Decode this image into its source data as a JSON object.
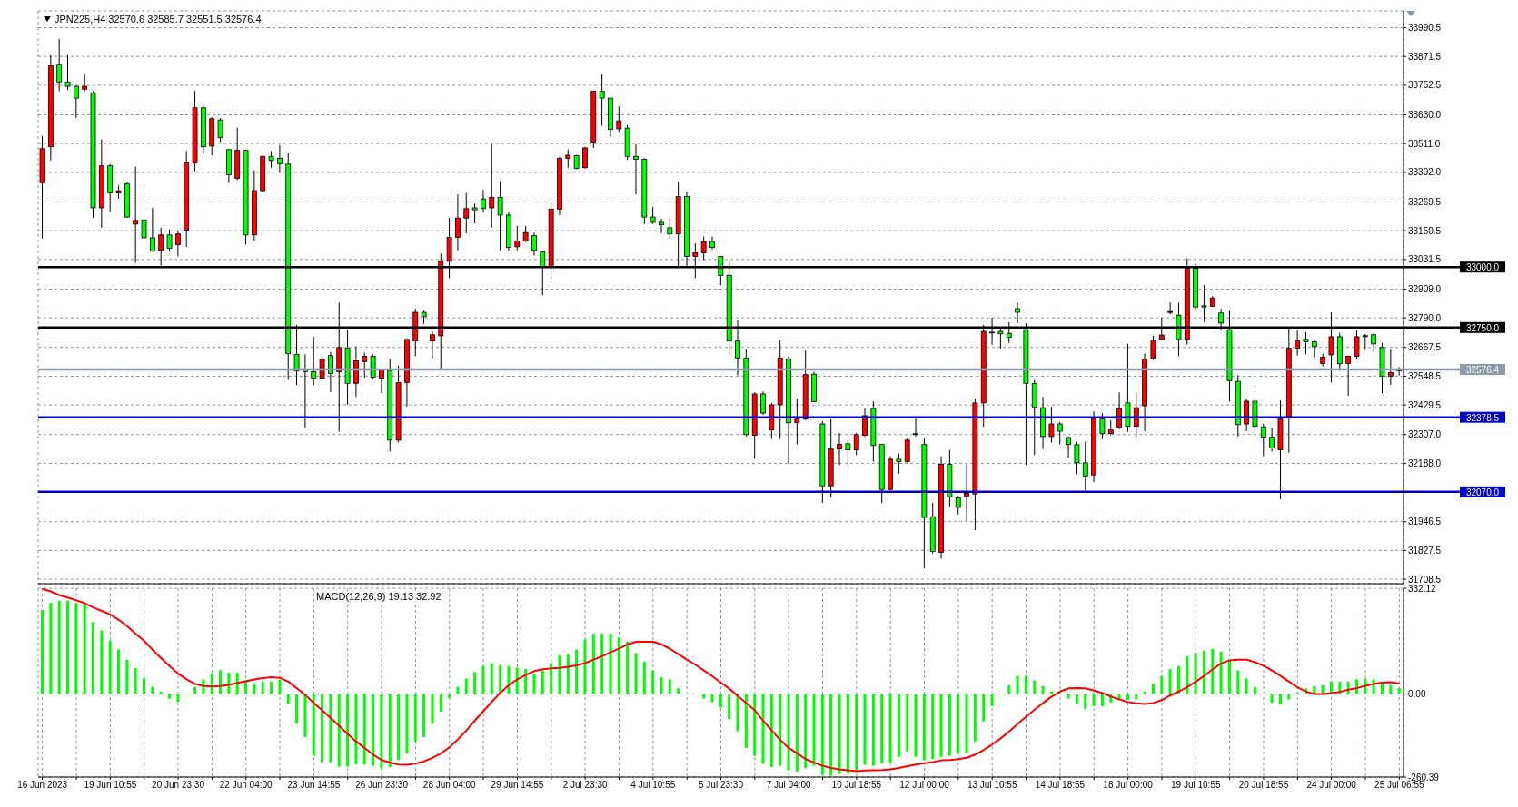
{
  "chart_data": [
    {
      "type": "candlestick",
      "title": "JPN225,H4  32570.6 32585.7 32551.5 32576.4",
      "categories": [
        null,
        null,
        null,
        null,
        null,
        null,
        null,
        null,
        null,
        null,
        null,
        null,
        null,
        null,
        null,
        null,
        null,
        null,
        null,
        null,
        null,
        null,
        null,
        null,
        null,
        null,
        null,
        null,
        null,
        null,
        null,
        null,
        null,
        null,
        null,
        null,
        null,
        null,
        null,
        null,
        null,
        null,
        null,
        null,
        null,
        null,
        null,
        null,
        null,
        null,
        null,
        null,
        null,
        null,
        null,
        null,
        null,
        null,
        null,
        null,
        null,
        null,
        null,
        null,
        null,
        null,
        null,
        null,
        null,
        null,
        null,
        null,
        null,
        null,
        null,
        null,
        null,
        null,
        null,
        null,
        null,
        null,
        null,
        null,
        null,
        null,
        null,
        null,
        null,
        null,
        null,
        null,
        null,
        null,
        null,
        null,
        null,
        null,
        null,
        null,
        null,
        null,
        null,
        null,
        null,
        null,
        null,
        null,
        null,
        null,
        null,
        null,
        null,
        null,
        null,
        null,
        null,
        null,
        null,
        null,
        null,
        null,
        null,
        null,
        null,
        null,
        null,
        null,
        null,
        null,
        null,
        null,
        null,
        null,
        null,
        null,
        null,
        null,
        null,
        null,
        null,
        null,
        null,
        null,
        null,
        null,
        null,
        null,
        null,
        null,
        null,
        null,
        null,
        null,
        null,
        null,
        null,
        null,
        null,
        null,
        null
      ],
      "ohlc": [
        [
          33349,
          33542,
          33118,
          33490
        ],
        [
          33498,
          33877,
          33441,
          33833
        ],
        [
          33836,
          33944,
          33728,
          33766
        ],
        [
          33766,
          33877,
          33733,
          33748
        ],
        [
          33748,
          33751,
          33617,
          33699
        ],
        [
          33736,
          33799,
          33728,
          33748
        ],
        [
          33721,
          33728,
          33203,
          33245
        ],
        [
          33245,
          33528,
          33163,
          33419
        ],
        [
          33419,
          33426,
          33230,
          33307
        ],
        [
          33307,
          33337,
          33282,
          33316
        ],
        [
          33344,
          33352,
          33203,
          33207
        ],
        [
          33178,
          33416,
          33018,
          33193
        ],
        [
          33195,
          33341,
          33039,
          33121
        ],
        [
          33121,
          33245,
          33063,
          33066
        ],
        [
          33069,
          33163,
          33006,
          33133
        ],
        [
          33133,
          33155,
          33066,
          33078
        ],
        [
          33093,
          33152,
          33044,
          33137
        ],
        [
          33152,
          33480,
          33084,
          33431
        ],
        [
          33431,
          33728,
          33396,
          33659
        ],
        [
          33659,
          33669,
          33474,
          33498
        ],
        [
          33501,
          33620,
          33463,
          33614
        ],
        [
          33609,
          33617,
          33517,
          33535
        ],
        [
          33486,
          33486,
          33349,
          33382
        ],
        [
          33367,
          33577,
          33359,
          33483
        ],
        [
          33483,
          33486,
          33093,
          33133
        ],
        [
          33133,
          33401,
          33108,
          33316
        ],
        [
          33316,
          33465,
          33309,
          33458
        ],
        [
          33458,
          33480,
          33411,
          33441
        ],
        [
          33450,
          33505,
          33391,
          33428
        ],
        [
          33426,
          33475,
          32533,
          32642
        ],
        [
          32639,
          32761,
          32511,
          32570
        ],
        [
          32575,
          32639,
          32336,
          32567
        ],
        [
          32567,
          32712,
          32511,
          32540
        ],
        [
          32540,
          32631,
          32530,
          32619
        ],
        [
          32634,
          32649,
          32482,
          32560
        ],
        [
          32567,
          32853,
          32318,
          32667
        ],
        [
          32664,
          32741,
          32430,
          32519
        ],
        [
          32519,
          32671,
          32463,
          32612
        ],
        [
          32609,
          32646,
          32542,
          32631
        ],
        [
          32631,
          32639,
          32537,
          32545
        ],
        [
          32540,
          32578,
          32478,
          32575
        ],
        [
          32572,
          32619,
          32237,
          32284
        ],
        [
          32284,
          32592,
          32274,
          32522
        ],
        [
          32522,
          32701,
          32423,
          32701
        ],
        [
          32694,
          32828,
          32631,
          32813
        ],
        [
          32813,
          32820,
          32765,
          32795
        ],
        [
          32694,
          32735,
          32622,
          32720
        ],
        [
          32716,
          33056,
          32572,
          33024
        ],
        [
          33024,
          33203,
          32954,
          33123
        ],
        [
          33123,
          33301,
          33069,
          33203
        ],
        [
          33203,
          33307,
          33140,
          33242
        ],
        [
          33245,
          33263,
          33181,
          33237
        ],
        [
          33282,
          33319,
          33227,
          33242
        ],
        [
          33245,
          33508,
          33163,
          33289
        ],
        [
          33289,
          33356,
          33069,
          33215
        ],
        [
          33215,
          33230,
          33069,
          33081
        ],
        [
          33084,
          33170,
          33069,
          33108
        ],
        [
          33108,
          33170,
          33103,
          33143
        ],
        [
          33130,
          33143,
          33048,
          33069
        ],
        [
          33063,
          33063,
          32884,
          33003
        ],
        [
          33003,
          33267,
          32950,
          33240
        ],
        [
          33240,
          33456,
          33215,
          33449
        ],
        [
          33449,
          33486,
          33411,
          33463
        ],
        [
          33461,
          33465,
          33405,
          33408
        ],
        [
          33411,
          33498,
          33408,
          33493
        ],
        [
          33517,
          33728,
          33493,
          33728
        ],
        [
          33728,
          33799,
          33584,
          33699
        ],
        [
          33699,
          33699,
          33539,
          33569
        ],
        [
          33572,
          33665,
          33560,
          33605
        ],
        [
          33575,
          33587,
          33443,
          33458
        ],
        [
          33458,
          33508,
          33301,
          33446
        ],
        [
          33446,
          33450,
          33178,
          33207
        ],
        [
          33207,
          33248,
          33178,
          33185
        ],
        [
          33185,
          33200,
          33140,
          33175
        ],
        [
          33163,
          33200,
          33118,
          33137
        ],
        [
          33137,
          33353,
          33003,
          33292
        ],
        [
          33292,
          33312,
          33003,
          33044
        ],
        [
          33044,
          33099,
          32954,
          33059
        ],
        [
          33059,
          33126,
          33029,
          33106
        ],
        [
          33106,
          33126,
          33073,
          33081
        ],
        [
          33044,
          33044,
          32925,
          32966
        ],
        [
          32966,
          33029,
          32639,
          32694
        ],
        [
          32694,
          32780,
          32552,
          32624
        ],
        [
          32624,
          32661,
          32299,
          32307
        ],
        [
          32304,
          32482,
          32207,
          32475
        ],
        [
          32475,
          32485,
          32388,
          32396
        ],
        [
          32326,
          32438,
          32289,
          32430
        ],
        [
          32430,
          32698,
          32289,
          32624
        ],
        [
          32619,
          32631,
          32187,
          32356
        ],
        [
          32356,
          32455,
          32266,
          32371
        ],
        [
          32371,
          32654,
          32366,
          32555
        ],
        [
          32557,
          32567,
          32441,
          32444
        ],
        [
          32351,
          32363,
          32024,
          32095
        ],
        [
          32095,
          32371,
          32046,
          32247
        ],
        [
          32247,
          32314,
          32180,
          32266
        ],
        [
          32269,
          32284,
          32180,
          32244
        ],
        [
          32244,
          32314,
          32222,
          32307
        ],
        [
          32304,
          32415,
          32299,
          32385
        ],
        [
          32415,
          32445,
          32195,
          32262
        ],
        [
          32266,
          32269,
          32024,
          32080
        ],
        [
          32080,
          32217,
          32076,
          32205
        ],
        [
          32205,
          32229,
          32146,
          32195
        ],
        [
          32195,
          32292,
          32190,
          32284
        ],
        [
          32311,
          32374,
          32299,
          32307
        ],
        [
          32266,
          32292,
          31753,
          31964
        ],
        [
          31967,
          32024,
          31815,
          31823
        ],
        [
          31820,
          32217,
          31793,
          32184
        ],
        [
          32184,
          32244,
          32009,
          32050
        ],
        [
          32046,
          32053,
          31976,
          32006
        ],
        [
          32053,
          32184,
          31949,
          32064
        ],
        [
          32061,
          32455,
          31912,
          32438
        ],
        [
          32438,
          32761,
          32339,
          32734
        ],
        [
          32731,
          32790,
          32679,
          32729
        ],
        [
          32734,
          32753,
          32664,
          32724
        ],
        [
          32726,
          32771,
          32686,
          32709
        ],
        [
          32828,
          32854,
          32768,
          32813
        ],
        [
          32741,
          32768,
          32180,
          32519
        ],
        [
          32519,
          32533,
          32222,
          32421
        ],
        [
          32418,
          32463,
          32247,
          32299
        ],
        [
          32299,
          32421,
          32274,
          32351
        ],
        [
          32351,
          32359,
          32266,
          32321
        ],
        [
          32295,
          32299,
          32210,
          32266
        ],
        [
          32265,
          32277,
          32143,
          32190
        ],
        [
          32190,
          32277,
          32076,
          32135
        ],
        [
          32140,
          32403,
          32110,
          32374
        ],
        [
          32371,
          32396,
          32289,
          32311
        ],
        [
          32311,
          32366,
          32304,
          32326
        ],
        [
          32336,
          32481,
          32329,
          32414
        ],
        [
          32438,
          32683,
          32318,
          32341
        ],
        [
          32341,
          32481,
          32299,
          32418
        ],
        [
          32426,
          32642,
          32321,
          32619
        ],
        [
          32622,
          32716,
          32616,
          32694
        ],
        [
          32701,
          32790,
          32697,
          32719
        ],
        [
          32813,
          32854,
          32805,
          32816
        ],
        [
          32801,
          32853,
          32631,
          32701
        ],
        [
          32701,
          33036,
          32679,
          32995
        ],
        [
          32995,
          33014,
          32820,
          32835
        ],
        [
          32840,
          32925,
          32773,
          32835
        ],
        [
          32838,
          32880,
          32835,
          32872
        ],
        [
          32810,
          32828,
          32738,
          32768
        ],
        [
          32741,
          32820,
          32444,
          32530
        ],
        [
          32527,
          32552,
          32299,
          32348
        ],
        [
          32351,
          32455,
          32321,
          32445
        ],
        [
          32445,
          32485,
          32321,
          32341
        ],
        [
          32339,
          32351,
          32217,
          32296
        ],
        [
          32296,
          32333,
          32237,
          32251
        ],
        [
          32244,
          32448,
          32039,
          32371
        ],
        [
          32381,
          32746,
          32232,
          32664
        ],
        [
          32664,
          32741,
          32634,
          32697
        ],
        [
          32701,
          32731,
          32639,
          32691
        ],
        [
          32691,
          32697,
          32627,
          32671
        ],
        [
          32601,
          32642,
          32589,
          32627
        ],
        [
          32637,
          32813,
          32522,
          32712
        ],
        [
          32712,
          32728,
          32572,
          32600
        ],
        [
          32601,
          32634,
          32467,
          32631
        ],
        [
          32631,
          32738,
          32619,
          32712
        ],
        [
          32716,
          32724,
          32657,
          32713
        ],
        [
          32720,
          32726,
          32649,
          32682
        ],
        [
          32667,
          32686,
          32478,
          32549
        ],
        [
          32549,
          32661,
          32512,
          32563
        ],
        [
          32570.6,
          32585.7,
          32551.5,
          32576.4
        ]
      ],
      "colors": [
        "#ff0000",
        "#ff0000",
        "#00ff00",
        "#00ff00",
        "#00ff00",
        "#ff0000",
        "#00ff00",
        "#ff0000",
        "#00ff00",
        "#ff0000",
        "#00ff00",
        "#ff0000",
        "#00ff00",
        "#00ff00",
        "#ff0000",
        "#00ff00",
        "#ff0000",
        "#ff0000",
        "#ff0000",
        "#00ff00",
        "#ff0000",
        "#00ff00",
        "#00ff00",
        "#ff0000",
        "#00ff00",
        "#ff0000",
        "#ff0000",
        "#00ff00",
        "#00ff00",
        "#00ff00",
        "#00ff00",
        "#00ff00",
        "#00ff00",
        "#ff0000",
        "#00ff00",
        "#ff0000",
        "#00ff00",
        "#ff0000",
        "#ff0000",
        "#00ff00",
        "#ff0000",
        "#00ff00",
        "#ff0000",
        "#ff0000",
        "#ff0000",
        "#00ff00",
        "#ff0000",
        "#ff0000",
        "#ff0000",
        "#ff0000",
        "#ff0000",
        "#00ff00",
        "#00ff00",
        "#ff0000",
        "#00ff00",
        "#00ff00",
        "#ff0000",
        "#ff0000",
        "#00ff00",
        "#00ff00",
        "#ff0000",
        "#ff0000",
        "#ff0000",
        "#00ff00",
        "#ff0000",
        "#ff0000",
        "#00ff00",
        "#00ff00",
        "#ff0000",
        "#00ff00",
        "#00ff00",
        "#00ff00",
        "#00ff00",
        "#00ff00",
        "#00ff00",
        "#ff0000",
        "#00ff00",
        "#ff0000",
        "#ff0000",
        "#00ff00",
        "#00ff00",
        "#00ff00",
        "#00ff00",
        "#00ff00",
        "#ff0000",
        "#00ff00",
        "#ff0000",
        "#ff0000",
        "#00ff00",
        "#ff0000",
        "#ff0000",
        "#00ff00",
        "#00ff00",
        "#ff0000",
        "#ff0000",
        "#00ff00",
        "#ff0000",
        "#ff0000",
        "#00ff00",
        "#00ff00",
        "#ff0000",
        "#00ff00",
        "#ff0000",
        "#00ff00",
        "#00ff00",
        "#00ff00",
        "#ff0000",
        "#00ff00",
        "#00ff00",
        "#ff0000",
        "#ff0000",
        "#ff0000",
        "#00ff00",
        "#00ff00",
        "#00ff00",
        "#00ff00",
        "#00ff00",
        "#00ff00",
        "#00ff00",
        "#ff0000",
        "#00ff00",
        "#00ff00",
        "#00ff00",
        "#00ff00",
        "#ff0000",
        "#00ff00",
        "#ff0000",
        "#ff0000",
        "#00ff00",
        "#ff0000",
        "#ff0000",
        "#ff0000",
        "#ff0000",
        "#ff0000",
        "#00ff00",
        "#ff0000",
        "#00ff00",
        "#00ff00",
        "#ff0000",
        "#00ff00",
        "#00ff00",
        "#00ff00",
        "#ff0000",
        "#00ff00",
        "#00ff00",
        "#00ff00",
        "#ff0000",
        "#ff0000",
        "#ff0000",
        "#00ff00",
        "#00ff00",
        "#ff0000",
        "#ff0000",
        "#00ff00",
        "#ff0000",
        "#ff0000",
        "#00ff00",
        "#00ff00",
        "#00ff00",
        "#ff0000",
        "#ff0000"
      ],
      "ylim": [
        31690,
        34060
      ],
      "yticks": [
        33990.5,
        33871.5,
        33752.5,
        {
          "value": 33630,
          "label": "33630.0"
        },
        {
          "value": 33511,
          "label": "33511.0"
        },
        {
          "value": 33392,
          "label": "33392.0"
        },
        33269.5,
        33150.5,
        33031.5,
        {
          "value": 32909,
          "label": "32909.0"
        },
        {
          "value": 32790,
          "label": "32790.0"
        },
        32667.5,
        32548.5,
        32429.5,
        {
          "value": 32307,
          "label": "32307.0"
        },
        {
          "value": 32188,
          "label": "32188.0"
        },
        {
          "value": 32068.5,
          "label": null
        },
        31946.5,
        31827.5,
        31708.5
      ],
      "grid": true,
      "tick_labels": "y",
      "ref_lines": [
        {
          "axis": "y",
          "value": 33000,
          "label": "33000.0",
          "color": "#000000"
        },
        {
          "axis": "y",
          "value": 32750,
          "label": "32750.0",
          "color": "#000000"
        },
        {
          "axis": "y",
          "value": 32576.4,
          "label": "32576.4",
          "color": "#8c9aab"
        },
        {
          "axis": "y",
          "value": 32378.5,
          "label": "32378.5",
          "color": "#0000c8"
        },
        {
          "axis": "y",
          "value": 32070,
          "label": "32070.0",
          "color": "#0000c8"
        }
      ]
    },
    {
      "type": "bar",
      "title": "MACD(12,26,9) 19.13 32.92",
      "categories": [
        "16 Jun 2023",
        null,
        null,
        null,
        null,
        null,
        null,
        null,
        "19 Jun 10:55",
        null,
        null,
        null,
        null,
        null,
        null,
        null,
        "20 Jun 23:30",
        null,
        null,
        null,
        null,
        null,
        null,
        null,
        "22 Jun 04:00",
        null,
        null,
        null,
        null,
        null,
        null,
        null,
        "23 Jun 14:55",
        null,
        null,
        null,
        null,
        null,
        null,
        null,
        "26 Jun 23:30",
        null,
        null,
        null,
        null,
        null,
        null,
        null,
        "28 Jun 04:00",
        null,
        null,
        null,
        null,
        null,
        null,
        null,
        "29 Jun 14:55",
        null,
        null,
        null,
        null,
        null,
        null,
        null,
        "2 Jul 23:30",
        null,
        null,
        null,
        null,
        null,
        null,
        null,
        "4 Jul 10:55",
        null,
        null,
        null,
        null,
        null,
        null,
        null,
        "5 Jul 23:30",
        null,
        null,
        null,
        null,
        null,
        null,
        null,
        "7 Jul 04:00",
        null,
        null,
        null,
        null,
        null,
        null,
        null,
        "10 Jul 18:55",
        null,
        null,
        null,
        null,
        null,
        null,
        null,
        "12 Jul 00:00",
        null,
        null,
        null,
        null,
        null,
        null,
        null,
        "13 Jul 10:55",
        null,
        null,
        null,
        null,
        null,
        null,
        null,
        "14 Jul 18:55",
        null,
        null,
        null,
        null,
        null,
        null,
        null,
        "18 Jul 00:00",
        null,
        null,
        null,
        null,
        null,
        null,
        null,
        "19 Jul 10:55",
        null,
        null,
        null,
        null,
        null,
        null,
        null,
        "20 Jul 18:55",
        null,
        null,
        null,
        null,
        null,
        null,
        null,
        "24 Jul 00:00",
        null,
        null,
        null,
        null,
        null,
        null,
        null,
        "25 Jul 06:55"
      ],
      "series": [
        {
          "type": "bar",
          "color": "#00ff00",
          "values": [
            264,
            286,
            293,
            293,
            286,
            282,
            226,
            199,
            168,
            140,
            108,
            81,
            50,
            22,
            7,
            -14,
            -25,
            0,
            22,
            46,
            64,
            75,
            67,
            67,
            43,
            32,
            39,
            39,
            46,
            -31,
            -93,
            -135,
            -194,
            -214,
            -214,
            -228,
            -228,
            -221,
            -221,
            -225,
            -233,
            -229,
            -207,
            -186,
            -149,
            -135,
            -93,
            -56,
            -13,
            22,
            49,
            69,
            88,
            97,
            90,
            88,
            83,
            78,
            63,
            74,
            97,
            121,
            126,
            139,
            171,
            189,
            190,
            190,
            178,
            164,
            129,
            101,
            74,
            53,
            46,
            18,
            0,
            0,
            -14,
            -25,
            -42,
            -79,
            -117,
            -169,
            -194,
            -218,
            -229,
            -225,
            -239,
            -243,
            -232,
            -225,
            -253,
            -256,
            -250,
            -250,
            -239,
            -222,
            -225,
            -218,
            -214,
            -197,
            -181,
            -197,
            -208,
            -204,
            -197,
            -194,
            -186,
            -186,
            -149,
            -86,
            -38,
            0,
            28,
            57,
            57,
            43,
            25,
            8,
            3,
            -14,
            -31,
            -47,
            -38,
            -38,
            -26,
            -17,
            -19,
            -17,
            8,
            32,
            56,
            78,
            88,
            119,
            129,
            136,
            142,
            133,
            108,
            74,
            49,
            22,
            0,
            -28,
            -33,
            -17,
            4,
            18,
            25,
            28,
            39,
            39,
            39,
            46,
            49,
            46,
            32,
            28,
            19.13
          ]
        },
        {
          "type": "line",
          "color": "#ff0000",
          "values": [
            330,
            322,
            310,
            303,
            294,
            285,
            272,
            261,
            250,
            233,
            213,
            189,
            167,
            139,
            113,
            88,
            64,
            46,
            32,
            25,
            24,
            25,
            29,
            35,
            40,
            46,
            50,
            53,
            51,
            39,
            18,
            -3,
            -28,
            -51,
            -75,
            -100,
            -125,
            -149,
            -169,
            -190,
            -207,
            -215,
            -221,
            -222,
            -218,
            -211,
            -200,
            -186,
            -167,
            -142,
            -114,
            -83,
            -54,
            -24,
            4,
            28,
            46,
            60,
            72,
            78,
            81,
            82,
            86,
            90,
            97,
            108,
            119,
            131,
            143,
            156,
            164,
            164,
            164,
            156,
            142,
            125,
            108,
            92,
            74,
            56,
            36,
            17,
            -6,
            -28,
            -51,
            -84,
            -114,
            -144,
            -169,
            -186,
            -204,
            -215,
            -225,
            -232,
            -236,
            -239,
            -242,
            -240,
            -239,
            -238,
            -236,
            -232,
            -226,
            -221,
            -217,
            -213,
            -208,
            -207,
            -204,
            -200,
            -190,
            -175,
            -158,
            -139,
            -117,
            -94,
            -71,
            -49,
            -28,
            -8,
            8,
            18,
            19,
            18,
            11,
            3,
            -8,
            -17,
            -25,
            -29,
            -31,
            -28,
            -19,
            -4,
            8,
            22,
            39,
            57,
            78,
            96,
            106,
            108,
            108,
            100,
            89,
            74,
            57,
            39,
            21,
            8,
            0,
            0,
            3,
            7,
            14,
            19,
            26,
            32,
            36,
            37,
            32.92
          ]
        }
      ],
      "ylim": [
        -260.39,
        332.12
      ],
      "yticks": [
        332.12,
        {
          "value": 0,
          "label": "0.00"
        },
        -260.39
      ],
      "grid": true
    }
  ]
}
